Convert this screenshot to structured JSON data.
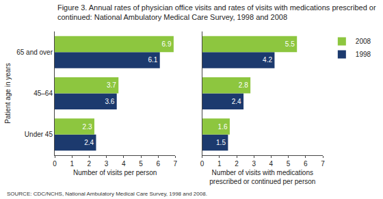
{
  "title": "Figure 3. Annual rates of physician office visits and rates of visits with medications prescribed or continued: National Ambulatory Medical Care Survey, 1998 and 2008",
  "source": "SOURCE: CDC/NCHS, National Ambulatory Medical Care Survey, 1998 and 2008.",
  "chart_data": [
    {
      "type": "bar",
      "orientation": "horizontal",
      "categories": [
        "Under 45",
        "45–64",
        "65 and over"
      ],
      "x_label": "Number of visits per person",
      "y_label": "Patient age in years",
      "xlim": [
        0,
        7
      ],
      "xticks": [
        0,
        1,
        2,
        3,
        4,
        5,
        6,
        7
      ],
      "grid": false,
      "data_labels": true,
      "series": [
        {
          "name": "2008",
          "color": "#8dc63f",
          "values": [
            2.3,
            3.7,
            6.9
          ]
        },
        {
          "name": "1998",
          "color": "#1c3a6e",
          "values": [
            2.4,
            3.6,
            6.1
          ]
        }
      ]
    },
    {
      "type": "bar",
      "orientation": "horizontal",
      "categories": [
        "Under 45",
        "45–64",
        "65 and over"
      ],
      "x_label": "Number of visits with medications prescribed or continued per person",
      "xlim": [
        0,
        7
      ],
      "xticks": [
        0,
        1,
        2,
        3,
        4,
        5,
        6,
        7
      ],
      "grid": false,
      "data_labels": true,
      "tick_labels": "x",
      "legend": "upper right",
      "series": [
        {
          "name": "2008",
          "color": "#8dc63f",
          "values": [
            1.6,
            2.8,
            5.5
          ]
        },
        {
          "name": "1998",
          "color": "#1c3a6e",
          "values": [
            1.5,
            2.4,
            4.2
          ]
        }
      ]
    }
  ]
}
